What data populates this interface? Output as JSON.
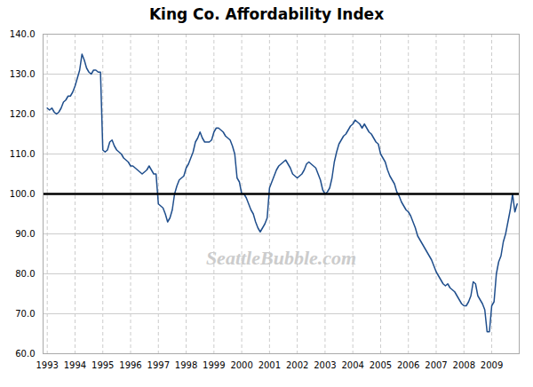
{
  "chart_data": {
    "type": "line",
    "title": "King Co. Affordability Index",
    "color": "#1f4e8c",
    "grid": true,
    "hline": {
      "y": 100,
      "color": "black"
    },
    "annotations": [
      {
        "text": "SeattleBubble.com"
      }
    ],
    "xlim": [
      1992.85,
      2009.99
    ],
    "xticks": [
      1993,
      1994,
      1995,
      1996,
      1997,
      1998,
      1999,
      2000,
      2001,
      2002,
      2003,
      2004,
      2005,
      2006,
      2007,
      2008,
      2009
    ],
    "ylim": [
      60.0,
      140.0
    ],
    "yticks": [
      {
        "value": 60,
        "label": "60.0"
      },
      {
        "value": 70,
        "label": "70.0"
      },
      {
        "value": 80,
        "label": "80.0"
      },
      {
        "value": 90,
        "label": "90.0"
      },
      {
        "value": 100,
        "label": "100.0"
      },
      {
        "value": 110,
        "label": "110.0"
      },
      {
        "value": 120,
        "label": "120.0"
      },
      {
        "value": 130,
        "label": "130.0"
      },
      {
        "value": 140,
        "label": "140.0"
      }
    ],
    "x": [
      1993,
      1993.0833333333333,
      1993.1666666666667,
      1993.25,
      1993.3333333333333,
      1993.4166666666667,
      1993.5,
      1993.5833333333333,
      1993.6666666666667,
      1993.75,
      1993.8333333333333,
      1993.9166666666667,
      1994,
      1994.0833333333333,
      1994.1666666666667,
      1994.25,
      1994.3333333333333,
      1994.4166666666667,
      1994.5,
      1994.5833333333333,
      1994.6666666666667,
      1994.75,
      1994.8333333333333,
      1994.9166666666667,
      1995,
      1995.0833333333333,
      1995.1666666666667,
      1995.25,
      1995.3333333333333,
      1995.4166666666667,
      1995.5,
      1995.5833333333333,
      1995.6666666666667,
      1995.75,
      1995.8333333333333,
      1995.9166666666667,
      1996,
      1996.0833333333333,
      1996.1666666666667,
      1996.25,
      1996.3333333333333,
      1996.4166666666667,
      1996.5,
      1996.5833333333333,
      1996.6666666666667,
      1996.75,
      1996.8333333333333,
      1996.9166666666667,
      1997,
      1997.0833333333333,
      1997.1666666666667,
      1997.25,
      1997.3333333333333,
      1997.4166666666667,
      1997.5,
      1997.5833333333333,
      1997.6666666666667,
      1997.75,
      1997.8333333333333,
      1997.9166666666667,
      1998,
      1998.0833333333333,
      1998.1666666666667,
      1998.25,
      1998.3333333333333,
      1998.4166666666667,
      1998.5,
      1998.5833333333333,
      1998.6666666666667,
      1998.75,
      1998.8333333333333,
      1998.9166666666667,
      1999,
      1999.0833333333333,
      1999.1666666666667,
      1999.25,
      1999.3333333333333,
      1999.4166666666667,
      1999.5,
      1999.5833333333333,
      1999.6666666666667,
      1999.75,
      1999.8333333333333,
      1999.9166666666667,
      2000,
      2000.0833333333333,
      2000.1666666666667,
      2000.25,
      2000.3333333333333,
      2000.4166666666667,
      2000.5,
      2000.5833333333333,
      2000.6666666666667,
      2000.75,
      2000.8333333333333,
      2000.9166666666667,
      2001,
      2001.0833333333333,
      2001.1666666666667,
      2001.25,
      2001.3333333333333,
      2001.4166666666667,
      2001.5,
      2001.5833333333333,
      2001.6666666666667,
      2001.75,
      2001.8333333333333,
      2001.9166666666667,
      2002,
      2002.0833333333333,
      2002.1666666666667,
      2002.25,
      2002.3333333333333,
      2002.4166666666667,
      2002.5,
      2002.5833333333333,
      2002.6666666666667,
      2002.75,
      2002.8333333333333,
      2002.9166666666667,
      2003,
      2003.0833333333333,
      2003.1666666666667,
      2003.25,
      2003.3333333333333,
      2003.4166666666667,
      2003.5,
      2003.5833333333333,
      2003.6666666666667,
      2003.75,
      2003.8333333333333,
      2003.9166666666667,
      2004,
      2004.0833333333333,
      2004.1666666666667,
      2004.25,
      2004.3333333333333,
      2004.4166666666667,
      2004.5,
      2004.5833333333333,
      2004.6666666666667,
      2004.75,
      2004.8333333333333,
      2004.9166666666667,
      2005,
      2005.0833333333333,
      2005.1666666666667,
      2005.25,
      2005.3333333333333,
      2005.4166666666667,
      2005.5,
      2005.5833333333333,
      2005.6666666666667,
      2005.75,
      2005.8333333333333,
      2005.9166666666667,
      2006,
      2006.0833333333333,
      2006.1666666666667,
      2006.25,
      2006.3333333333333,
      2006.4166666666667,
      2006.5,
      2006.5833333333333,
      2006.6666666666667,
      2006.75,
      2006.8333333333333,
      2006.9166666666667,
      2007,
      2007.0833333333333,
      2007.1666666666667,
      2007.25,
      2007.3333333333333,
      2007.4166666666667,
      2007.5,
      2007.5833333333333,
      2007.6666666666667,
      2007.75,
      2007.8333333333333,
      2007.9166666666667,
      2008,
      2008.0833333333333,
      2008.1666666666667,
      2008.25,
      2008.3333333333333,
      2008.4166666666667,
      2008.5,
      2008.5833333333333,
      2008.6666666666667,
      2008.75,
      2008.8333333333333,
      2008.9166666666667,
      2009,
      2009.0833333333333,
      2009.1666666666667,
      2009.25,
      2009.3333333333333,
      2009.4166666666667,
      2009.5,
      2009.5833333333333,
      2009.6666666666667,
      2009.75,
      2009.8333333333333,
      2009.9166666666667
    ],
    "values": [
      121.5,
      121.0,
      121.5,
      120.5,
      120.0,
      120.5,
      121.5,
      123.0,
      123.5,
      124.5,
      124.5,
      125.5,
      127.0,
      129.0,
      131.0,
      135.0,
      133.5,
      131.5,
      130.5,
      130.0,
      131.0,
      131.0,
      130.5,
      130.5,
      111.0,
      110.5,
      111.0,
      113.0,
      113.5,
      112.0,
      111.0,
      110.5,
      110.0,
      109.0,
      108.5,
      108.0,
      107.0,
      107.0,
      106.5,
      106.0,
      105.5,
      105.0,
      105.5,
      106.0,
      107.0,
      106.0,
      105.0,
      105.0,
      97.5,
      97.0,
      96.5,
      95.0,
      93.0,
      94.0,
      96.0,
      100.0,
      102.0,
      103.5,
      104.0,
      104.5,
      106.5,
      107.5,
      109.0,
      110.5,
      113.0,
      114.0,
      115.5,
      114.0,
      113.0,
      113.0,
      113.0,
      113.5,
      115.5,
      116.5,
      116.5,
      116.0,
      115.5,
      114.5,
      114.0,
      113.5,
      112.0,
      110.0,
      104.0,
      103.0,
      100.0,
      100.0,
      99.0,
      97.5,
      96.0,
      95.0,
      93.0,
      91.5,
      90.5,
      91.5,
      92.5,
      94.0,
      101.5,
      103.0,
      104.5,
      106.0,
      107.0,
      107.5,
      108.0,
      108.5,
      107.5,
      106.5,
      105.0,
      104.5,
      104.0,
      104.5,
      105.0,
      106.0,
      107.5,
      108.0,
      107.5,
      107.0,
      106.5,
      105.0,
      103.5,
      101.0,
      100.0,
      100.5,
      101.5,
      104.0,
      108.0,
      110.5,
      112.5,
      113.5,
      114.5,
      115.0,
      116.0,
      117.0,
      117.5,
      118.5,
      118.0,
      117.5,
      116.5,
      117.5,
      116.5,
      115.5,
      115.0,
      114.0,
      113.0,
      112.5,
      110.0,
      109.0,
      108.0,
      106.0,
      104.5,
      103.5,
      102.5,
      100.5,
      99.5,
      98.0,
      97.0,
      96.0,
      95.5,
      94.5,
      93.0,
      91.5,
      89.5,
      88.5,
      87.5,
      86.5,
      85.5,
      84.5,
      83.5,
      82.0,
      80.5,
      79.5,
      78.5,
      77.5,
      77.0,
      77.5,
      76.5,
      76.0,
      75.5,
      74.5,
      73.5,
      72.5,
      72.0,
      72.0,
      73.0,
      74.5,
      78.0,
      77.5,
      74.5,
      73.5,
      72.5,
      71.0,
      65.5,
      65.5,
      72.0,
      73.0,
      80.0,
      83.0,
      84.5,
      88.0,
      90.0,
      93.0,
      96.0,
      100.0,
      95.5,
      97.5
    ]
  }
}
